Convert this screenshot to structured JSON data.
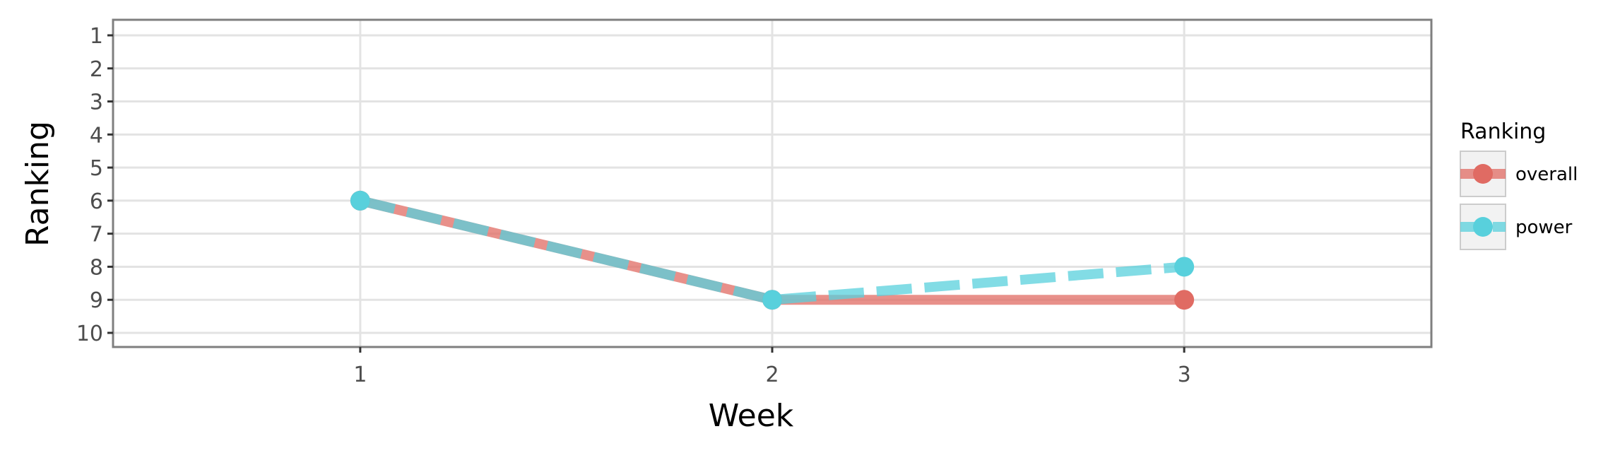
{
  "chart_data": {
    "type": "line",
    "title": "",
    "xlabel": "Week",
    "ylabel": "Ranking",
    "x": [
      1,
      2,
      3
    ],
    "x_ticks": [
      "1",
      "2",
      "3"
    ],
    "y_ticks": [
      "1",
      "2",
      "3",
      "4",
      "5",
      "6",
      "7",
      "8",
      "9",
      "10"
    ],
    "xlim": [
      0.4,
      3.6
    ],
    "ylim": [
      1,
      10
    ],
    "y_reversed": true,
    "grid": true,
    "legend": {
      "title": "Ranking",
      "placement": "right"
    },
    "series": [
      {
        "name": "overall",
        "values": [
          6,
          9,
          9
        ],
        "color": "#e06b63",
        "line_style": "solid"
      },
      {
        "name": "power",
        "values": [
          6,
          9,
          8
        ],
        "color": "#58d0dc",
        "line_style": "dashed"
      }
    ]
  }
}
